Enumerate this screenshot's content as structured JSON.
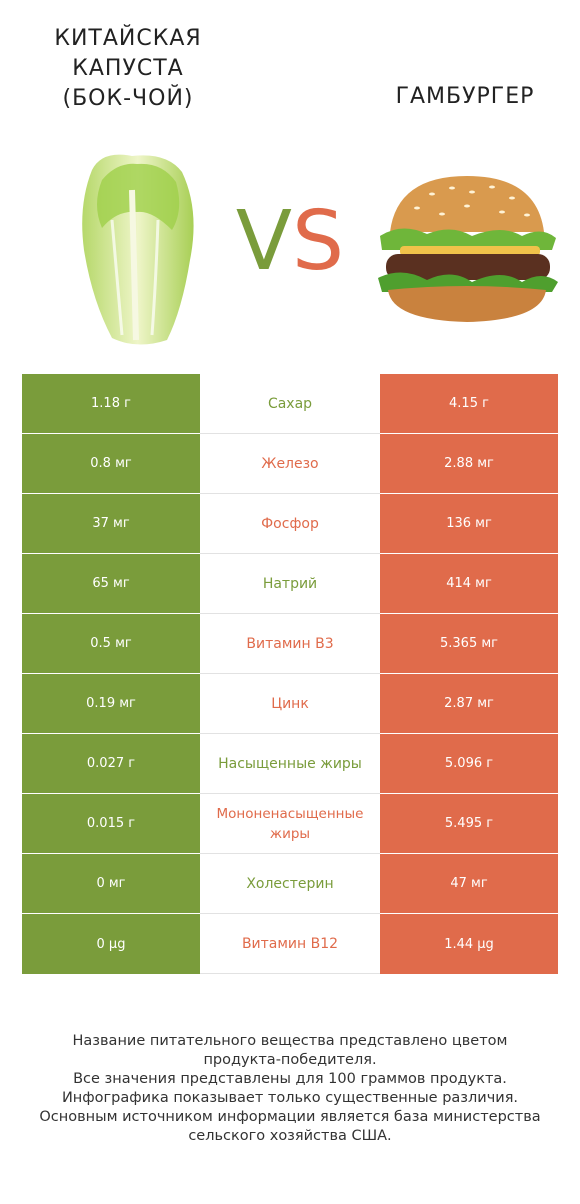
{
  "header": {
    "left_title_lines": [
      "КИТАЙСКАЯ",
      "КАПУСТА",
      "(БОК-ЧОЙ)"
    ],
    "right_title": "ГАМБУРГЕР",
    "vs_v": "V",
    "vs_s": "S"
  },
  "colors": {
    "winner_left": "#7a9c3b",
    "winner_right": "#e06b4b"
  },
  "rows": [
    {
      "left": "1.18 г",
      "name": "Сахар",
      "right": "4.15 г",
      "name_color": "left"
    },
    {
      "left": "0.8 мг",
      "name": "Железо",
      "right": "2.88 мг",
      "name_color": "right"
    },
    {
      "left": "37 мг",
      "name": "Фосфор",
      "right": "136 мг",
      "name_color": "right"
    },
    {
      "left": "65 мг",
      "name": "Натрий",
      "right": "414 мг",
      "name_color": "left"
    },
    {
      "left": "0.5 мг",
      "name": "Витамин B3",
      "right": "5.365 мг",
      "name_color": "right"
    },
    {
      "left": "0.19 мг",
      "name": "Цинк",
      "right": "2.87 мг",
      "name_color": "right"
    },
    {
      "left": "0.027 г",
      "name": "Насыщенные жиры",
      "right": "5.096 г",
      "name_color": "left"
    },
    {
      "left": "0.015 г",
      "name": "Мононенасыщенные жиры",
      "right": "5.495 г",
      "name_color": "right"
    },
    {
      "left": "0 мг",
      "name": "Холестерин",
      "right": "47 мг",
      "name_color": "left"
    },
    {
      "left": "0 µg",
      "name": "Витамин B12",
      "right": "1.44 µg",
      "name_color": "right"
    }
  ],
  "footer_lines": [
    "Название питательного вещества представлено цветом",
    "продукта-победителя.",
    "Все значения представлены для 100 граммов продукта.",
    "Инфографика показывает только существенные различия.",
    "Основным источником информации является база министерства",
    "сельского хозяйства США."
  ]
}
